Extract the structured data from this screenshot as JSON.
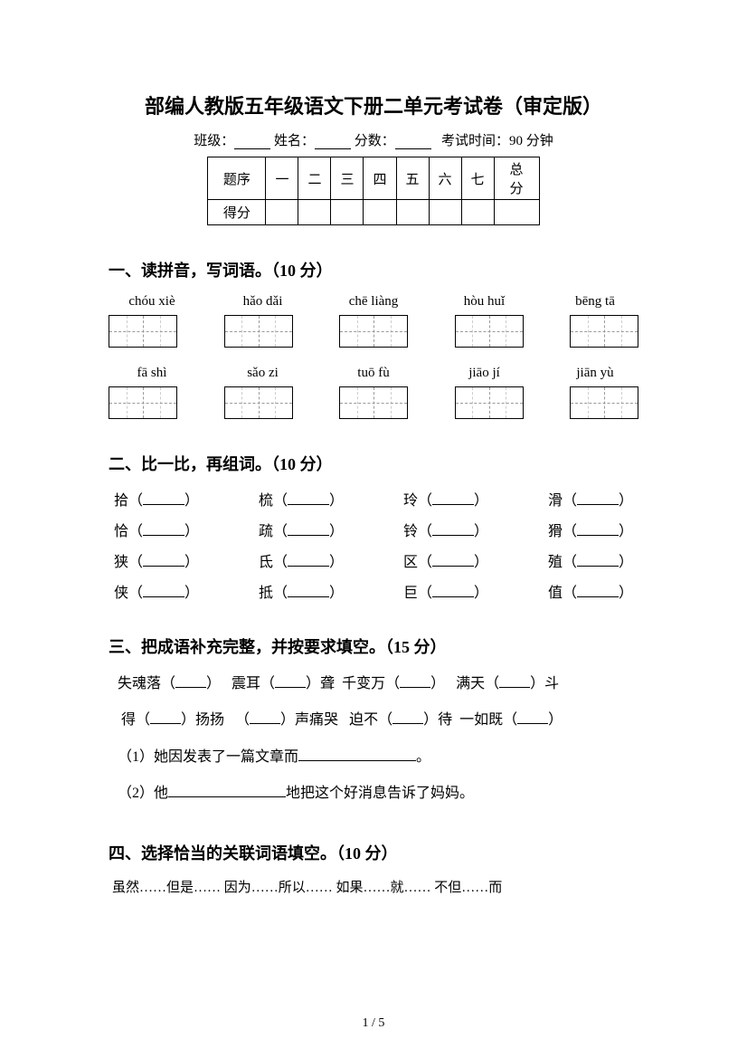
{
  "title": "部编人教版五年级语文下册二单元考试卷（审定版）",
  "info": {
    "class_label": "班级：",
    "name_label": "姓名：",
    "score_label": "分数：",
    "time_label": "考试时间：90 分钟"
  },
  "score_table": {
    "header_label": "题序",
    "score_label": "得分",
    "cols": [
      "一",
      "二",
      "三",
      "四",
      "五",
      "六",
      "七",
      "总分"
    ]
  },
  "section1": {
    "header": "一、读拼音，写词语。（10 分）",
    "row1": [
      "chóu xiè",
      "hǎo dǎi",
      "chē liàng",
      "hòu huǐ",
      "bēng tā"
    ],
    "row2": [
      "fā  shì",
      "sǎo zi",
      "tuō fù",
      "jiāo jí",
      "jiān yù"
    ]
  },
  "section2": {
    "header": "二、比一比，再组词。（10 分）",
    "rows": [
      [
        "拾",
        "梳",
        "玲",
        "滑"
      ],
      [
        "恰",
        "疏",
        "铃",
        "猾"
      ],
      [
        "狭",
        "氐",
        "区",
        "殖"
      ],
      [
        "侠",
        "抵",
        "巨",
        "值"
      ]
    ]
  },
  "section3": {
    "header": "三、把成语补充完整，并按要求填空。（15 分）",
    "idioms_line1": [
      "失魂落（",
      "）",
      "震耳（",
      "）聋",
      "千变万（",
      "）",
      "满天（",
      "）斗"
    ],
    "idioms_line2": [
      "得（",
      "）扬扬",
      "（",
      "）声痛哭",
      "迫不（",
      "）待",
      "一如既（",
      "）"
    ],
    "fill1_pre": "（1）她因发表了一篇文章而",
    "fill1_post": "。",
    "fill2_pre": "（2）他",
    "fill2_mid": "地把这个好消息告诉了妈妈。"
  },
  "section4": {
    "header": "四、选择恰当的关联词语填空。（10 分）",
    "options": "虽然……但是……   因为……所以……   如果……就……   不但……而"
  },
  "page_number": "1 / 5"
}
